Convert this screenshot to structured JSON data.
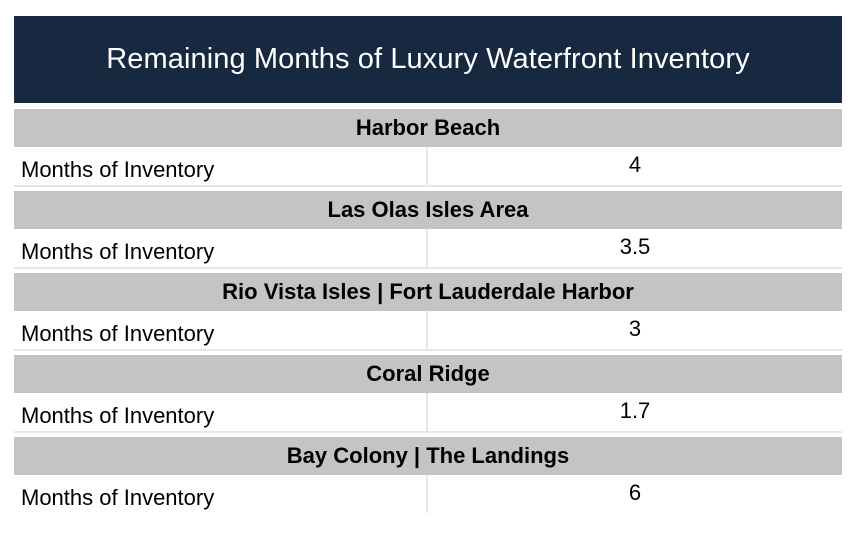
{
  "chart_data": {
    "type": "table",
    "title": "Remaining Months of Luxury Waterfront Inventory",
    "row_label": "Months of Inventory",
    "sections": [
      {
        "name": "Harbor Beach",
        "value": "4"
      },
      {
        "name": "Las Olas Isles Area",
        "value": "3.5"
      },
      {
        "name": "Rio Vista Isles | Fort Lauderdale Harbor",
        "value": "3"
      },
      {
        "name": "Coral Ridge",
        "value": "1.7"
      },
      {
        "name": "Bay Colony | The Landings",
        "value": "6"
      }
    ]
  },
  "colors": {
    "title_background": "#172841",
    "title_text": "#ffffff",
    "section_background": "#c4c4c4"
  }
}
